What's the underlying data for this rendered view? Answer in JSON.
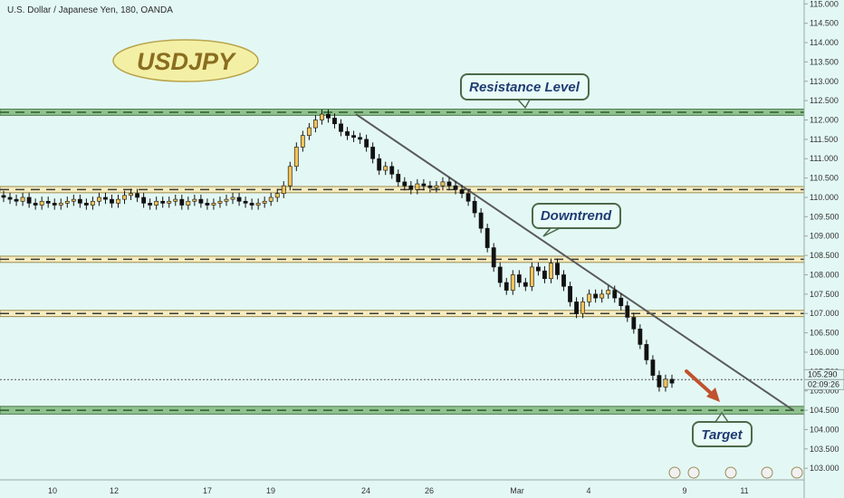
{
  "header": {
    "symbol_title": "U.S. Dollar / Japanese Yen, 180, OANDA"
  },
  "badge": {
    "text": "USDJPY"
  },
  "callouts": {
    "resistance": "Resistance Level",
    "downtrend": "Downtrend",
    "target": "Target"
  },
  "price_axis": {
    "current_price_label": "105.290",
    "countdown_label": "02:09:26"
  },
  "colors": {
    "background": "#e3f8f4",
    "up_candle": "#f2c35a",
    "down_candle": "#111111",
    "resistance_band": "#8fc28f",
    "support_band": "#f6ecc0",
    "trendline": "#5a5a5a",
    "arrow": "#c0522f",
    "badge_fill": "#f3f0a6",
    "badge_text": "#8a6d1f",
    "callout_text": "#1f3b73"
  },
  "chart_data": {
    "type": "candlestick",
    "title": "",
    "xlabel": "",
    "ylabel": "",
    "ylim": [
      102.7,
      115.1
    ],
    "y_ticks": [
      "103.000",
      "103.500",
      "104.000",
      "104.500",
      "105.000",
      "105.500",
      "106.000",
      "106.500",
      "107.000",
      "107.500",
      "108.000",
      "108.500",
      "109.000",
      "109.500",
      "110.000",
      "110.500",
      "111.000",
      "111.500",
      "112.000",
      "112.500",
      "113.000",
      "113.500",
      "114.000",
      "114.500",
      "115.000"
    ],
    "x_ticks": [
      "10",
      "12",
      "17",
      "19",
      "24",
      "26",
      "Mar",
      "4",
      "9",
      "11"
    ],
    "horizontal_levels": [
      {
        "name": "resistance",
        "price": 112.2,
        "band": [
          112.12,
          112.28
        ]
      },
      {
        "name": "support-1",
        "price": 110.2,
        "band": [
          110.12,
          110.28
        ]
      },
      {
        "name": "support-2",
        "price": 108.4,
        "band": [
          108.32,
          108.48
        ]
      },
      {
        "name": "support-3",
        "price": 107.0,
        "band": [
          106.92,
          107.08
        ]
      },
      {
        "name": "target",
        "price": 104.5,
        "band": [
          104.4,
          104.6
        ]
      }
    ],
    "trendline": {
      "from": [
        112.15,
        "24"
      ],
      "to": [
        104.5,
        "11+"
      ]
    },
    "current_price": 105.29,
    "closes": [
      110.0,
      109.95,
      109.9,
      110.0,
      109.85,
      109.8,
      109.9,
      109.85,
      109.8,
      109.85,
      109.9,
      109.95,
      109.85,
      109.8,
      109.9,
      110.0,
      109.95,
      109.85,
      109.95,
      110.05,
      110.1,
      110.0,
      109.85,
      109.8,
      109.9,
      109.85,
      109.9,
      109.95,
      109.8,
      109.9,
      109.95,
      109.85,
      109.8,
      109.85,
      109.9,
      109.95,
      110.0,
      109.9,
      109.85,
      109.8,
      109.85,
      109.9,
      110.0,
      110.1,
      110.3,
      110.8,
      111.3,
      111.6,
      111.8,
      112.0,
      112.15,
      112.05,
      111.9,
      111.7,
      111.6,
      111.55,
      111.5,
      111.3,
      111.0,
      110.7,
      110.8,
      110.6,
      110.4,
      110.3,
      110.2,
      110.35,
      110.3,
      110.25,
      110.3,
      110.4,
      110.3,
      110.2,
      110.1,
      109.9,
      109.6,
      109.2,
      108.7,
      108.2,
      107.8,
      107.6,
      108.0,
      107.8,
      107.7,
      108.2,
      108.1,
      107.9,
      108.3,
      108.0,
      107.7,
      107.3,
      107.0,
      107.3,
      107.5,
      107.4,
      107.5,
      107.6,
      107.4,
      107.2,
      106.9,
      106.6,
      106.2,
      105.8,
      105.4,
      105.1,
      105.3,
      105.2
    ]
  }
}
